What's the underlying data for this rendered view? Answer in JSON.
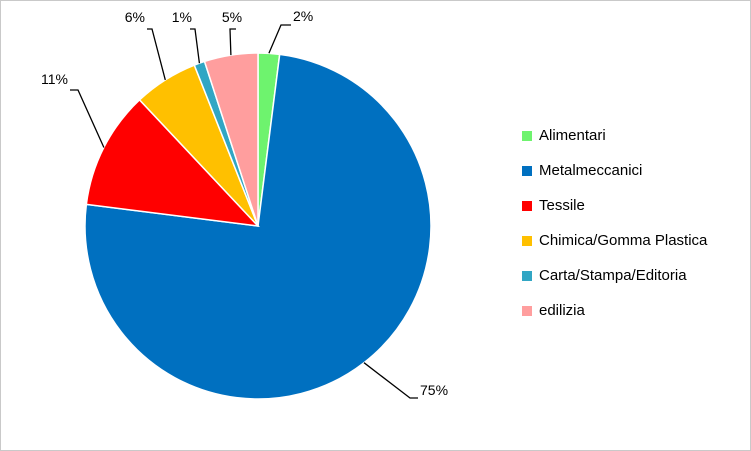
{
  "chart_data": {
    "type": "pie",
    "title": "",
    "legend_position": "right",
    "series": [
      {
        "name": "Alimentari",
        "value": 2,
        "label": "2%",
        "color": "#6ef36e"
      },
      {
        "name": "Metalmeccanici",
        "value": 75,
        "label": "75%",
        "color": "#0070c0"
      },
      {
        "name": "Tessile",
        "value": 11,
        "label": "11%",
        "color": "#ff0000"
      },
      {
        "name": "Chimica/Gomma Plastica",
        "value": 6,
        "label": "6%",
        "color": "#ffc000"
      },
      {
        "name": "Carta/Stampa/Editoria",
        "value": 1,
        "label": "1%",
        "color": "#31a6c4"
      },
      {
        "name": "edilizia",
        "value": 5,
        "label": "5%",
        "color": "#ff9e9e"
      }
    ]
  }
}
